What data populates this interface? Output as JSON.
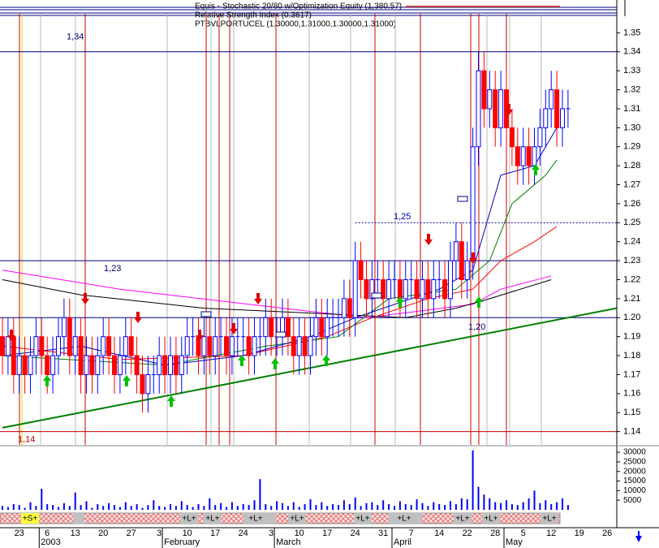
{
  "chart_data": {
    "type": "candlestick",
    "title": "Equis - Stochastic 20/80 w/Optimization Equity (1,380.57)",
    "subtitle": "Relative Strength Index (0.3617)",
    "symbol_label": "PTBVLPORTUCEL (1.30000,1.31000,1.30000,1.31000)",
    "categories": [
      null,
      null,
      null,
      "23",
      null,
      null,
      null,
      null,
      "6",
      null,
      null,
      null,
      null,
      "13",
      null,
      null,
      null,
      null,
      "20",
      null,
      null,
      null,
      null,
      "27",
      null,
      null,
      null,
      null,
      "3",
      null,
      null,
      null,
      null,
      "10",
      null,
      null,
      null,
      null,
      "17",
      null,
      null,
      null,
      null,
      "24",
      null,
      null,
      null,
      null,
      "3",
      null,
      null,
      null,
      null,
      "10",
      null,
      null,
      null,
      null,
      "17",
      null,
      null,
      null,
      null,
      "24",
      null,
      null,
      null,
      null,
      "31",
      null,
      null,
      null,
      null,
      "7",
      null,
      null,
      null,
      null,
      "14",
      null,
      null,
      null,
      null,
      "22",
      null,
      null,
      null,
      null,
      "28",
      null,
      null,
      null,
      null,
      "5",
      null,
      null,
      null,
      null,
      "12",
      null,
      null,
      null,
      null,
      "19",
      null,
      null,
      null,
      null,
      "26",
      null
    ],
    "months": [
      null,
      null,
      null,
      null,
      null,
      null,
      null,
      "2003",
      null,
      null,
      null,
      null,
      null,
      null,
      null,
      null,
      null,
      null,
      null,
      null,
      null,
      null,
      null,
      null,
      null,
      null,
      null,
      null,
      null,
      "February",
      null,
      null,
      null,
      null,
      null,
      null,
      null,
      null,
      null,
      null,
      null,
      null,
      null,
      null,
      null,
      null,
      null,
      null,
      null,
      "March",
      null,
      null,
      null,
      null,
      null,
      null,
      null,
      null,
      null,
      null,
      null,
      null,
      null,
      null,
      null,
      null,
      null,
      null,
      null,
      null,
      "April",
      null,
      null,
      null,
      null,
      null,
      null,
      null,
      null,
      null,
      null,
      null,
      null,
      null,
      null,
      null,
      null,
      null,
      null,
      null,
      "May",
      null,
      null,
      null,
      null,
      null,
      null,
      null,
      null,
      null,
      null,
      null,
      null,
      null,
      null,
      null,
      null,
      null,
      null,
      null
    ],
    "open": [
      1.19,
      1.18,
      1.19,
      1.17,
      1.18,
      1.17,
      1.18,
      1.19,
      1.18,
      1.17,
      1.18,
      1.19,
      1.2,
      1.18,
      1.19,
      1.17,
      1.18,
      1.17,
      1.18,
      1.19,
      1.18,
      1.17,
      1.18,
      1.19,
      1.18,
      1.17,
      1.16,
      1.17,
      1.17,
      1.18,
      1.17,
      1.18,
      1.17,
      1.18,
      1.19,
      1.19,
      1.18,
      1.19,
      1.18,
      1.19,
      1.19,
      1.18,
      1.19,
      1.19,
      1.19,
      1.18,
      1.19,
      1.19,
      1.2,
      1.19,
      1.19,
      1.2,
      1.19,
      1.18,
      1.19,
      1.18,
      1.19,
      1.2,
      1.19,
      1.2,
      1.2,
      1.2,
      1.21,
      1.2,
      1.23,
      1.22,
      1.21,
      1.22,
      1.22,
      1.21,
      1.22,
      1.22,
      1.21,
      1.22,
      1.22,
      1.21,
      1.22,
      1.21,
      1.22,
      1.22,
      1.21,
      1.23,
      1.24,
      1.22,
      1.23,
      1.29,
      1.33,
      1.31,
      1.32,
      1.3,
      1.32,
      1.3,
      1.29,
      1.28,
      1.29,
      1.28,
      1.29,
      1.3,
      1.31,
      1.32,
      1.3,
      1.31,
      null,
      null,
      null,
      null,
      null,
      null,
      null,
      null
    ],
    "high": [
      1.2,
      1.2,
      1.2,
      1.19,
      1.19,
      1.19,
      1.2,
      1.2,
      1.19,
      1.19,
      1.2,
      1.21,
      1.21,
      1.2,
      1.2,
      1.19,
      1.19,
      1.19,
      1.2,
      1.2,
      1.19,
      1.19,
      1.2,
      1.2,
      1.19,
      1.18,
      1.18,
      1.18,
      1.19,
      1.19,
      1.19,
      1.19,
      1.19,
      1.2,
      1.2,
      1.2,
      1.2,
      1.2,
      1.2,
      1.2,
      1.2,
      1.2,
      1.2,
      1.2,
      1.2,
      1.2,
      1.2,
      1.21,
      1.21,
      1.2,
      1.21,
      1.21,
      1.2,
      1.2,
      1.2,
      1.2,
      1.21,
      1.21,
      1.21,
      1.21,
      1.21,
      1.22,
      1.22,
      1.24,
      1.24,
      1.23,
      1.23,
      1.23,
      1.23,
      1.23,
      1.23,
      1.23,
      1.23,
      1.23,
      1.23,
      1.23,
      1.23,
      1.23,
      1.23,
      1.23,
      1.24,
      1.25,
      1.25,
      1.24,
      1.3,
      1.34,
      1.34,
      1.33,
      1.33,
      1.33,
      1.33,
      1.31,
      1.3,
      1.3,
      1.3,
      1.3,
      1.31,
      1.32,
      1.33,
      1.33,
      1.32,
      1.32,
      null,
      null,
      null,
      null,
      null,
      null,
      null,
      null
    ],
    "low": [
      1.17,
      1.17,
      1.16,
      1.16,
      1.16,
      1.16,
      1.17,
      1.17,
      1.16,
      1.16,
      1.17,
      1.18,
      1.17,
      1.17,
      1.16,
      1.16,
      1.16,
      1.16,
      1.17,
      1.17,
      1.16,
      1.16,
      1.17,
      1.17,
      1.16,
      1.15,
      1.15,
      1.16,
      1.16,
      1.16,
      1.16,
      1.16,
      1.16,
      1.17,
      1.18,
      1.17,
      1.17,
      1.17,
      1.17,
      1.18,
      1.17,
      1.17,
      1.18,
      1.18,
      1.17,
      1.17,
      1.18,
      1.18,
      1.18,
      1.18,
      1.18,
      1.18,
      1.17,
      1.17,
      1.17,
      1.17,
      1.18,
      1.18,
      1.18,
      1.19,
      1.19,
      1.19,
      1.19,
      1.19,
      1.21,
      1.2,
      1.2,
      1.21,
      1.2,
      1.2,
      1.21,
      1.2,
      1.2,
      1.21,
      1.2,
      1.2,
      1.2,
      1.2,
      1.21,
      1.2,
      1.2,
      1.22,
      1.21,
      1.21,
      1.22,
      1.28,
      1.3,
      1.3,
      1.29,
      1.29,
      1.29,
      1.28,
      1.27,
      1.27,
      1.27,
      1.27,
      1.28,
      1.29,
      1.3,
      1.29,
      1.29,
      1.3,
      null,
      null,
      null,
      null,
      null,
      null,
      null,
      null
    ],
    "close": [
      1.18,
      1.19,
      1.17,
      1.18,
      1.17,
      1.18,
      1.19,
      1.18,
      1.17,
      1.18,
      1.19,
      1.2,
      1.18,
      1.19,
      1.17,
      1.18,
      1.17,
      1.18,
      1.19,
      1.18,
      1.17,
      1.18,
      1.19,
      1.18,
      1.17,
      1.16,
      1.17,
      1.17,
      1.18,
      1.17,
      1.18,
      1.17,
      1.18,
      1.19,
      1.19,
      1.18,
      1.19,
      1.18,
      1.19,
      1.19,
      1.18,
      1.19,
      1.19,
      1.19,
      1.18,
      1.19,
      1.19,
      1.2,
      1.19,
      1.19,
      1.2,
      1.19,
      1.18,
      1.19,
      1.18,
      1.19,
      1.2,
      1.19,
      1.2,
      1.2,
      1.2,
      1.21,
      1.2,
      1.23,
      1.22,
      1.21,
      1.22,
      1.22,
      1.21,
      1.22,
      1.22,
      1.21,
      1.22,
      1.22,
      1.21,
      1.22,
      1.21,
      1.22,
      1.22,
      1.21,
      1.23,
      1.24,
      1.22,
      1.23,
      1.29,
      1.33,
      1.31,
      1.32,
      1.3,
      1.32,
      1.3,
      1.29,
      1.28,
      1.29,
      1.28,
      1.29,
      1.3,
      1.31,
      1.32,
      1.3,
      1.31,
      1.31,
      null,
      null,
      null,
      null,
      null,
      null,
      null,
      null
    ],
    "up_color": "#0000ff",
    "down_color": "#ff0000",
    "ylim": [
      1.133,
      1.36
    ],
    "yticks": [
      1.14,
      1.15,
      1.16,
      1.17,
      1.18,
      1.19,
      {
        "value": 1.2,
        "label": "1.20"
      },
      1.21,
      1.22,
      1.23,
      1.24,
      1.25,
      1.26,
      1.27,
      1.28,
      1.29,
      {
        "value": 1.3,
        "label": "1.30"
      },
      1.31,
      1.32,
      1.33,
      1.34,
      1.35
    ],
    "volume": [
      2000,
      1500,
      3000,
      2500,
      1000,
      4000,
      2000,
      11000,
      3000,
      2500,
      1500,
      3500,
      2000,
      9000,
      2500,
      4500,
      1000,
      3000,
      2000,
      3500,
      2500,
      1500,
      4000,
      2000,
      3000,
      1000,
      2500,
      5000,
      2000,
      1500,
      3000,
      2000,
      4500,
      2500,
      1500,
      3000,
      2000,
      6000,
      2500,
      3500,
      1500,
      4000,
      2000,
      3000,
      2500,
      5000,
      16000,
      3000,
      2000,
      4500,
      3500,
      2000,
      4000,
      1500,
      3000,
      5500,
      2500,
      4000,
      2000,
      3000,
      2500,
      5000,
      3000,
      6500,
      2000,
      3500,
      4000,
      2500,
      5000,
      3000,
      2000,
      4500,
      3000,
      2500,
      5500,
      3500,
      2000,
      4000,
      3000,
      2500,
      4500,
      3000,
      6000,
      5500,
      31000,
      12000,
      8000,
      6000,
      4000,
      3500,
      5000,
      3000,
      2500,
      4000,
      6000,
      10000,
      3500,
      5000,
      3000,
      4000,
      6000,
      2500,
      null,
      null,
      null,
      null,
      null,
      null,
      null,
      null
    ],
    "volume_color": "#0000ff",
    "volume_ylim": [
      0,
      33000
    ],
    "volume_ticks": [
      5000,
      10000,
      15000,
      20000,
      25000,
      30000
    ],
    "levels": [
      {
        "value": 1.34,
        "label": "1,34",
        "color": "#000080"
      },
      {
        "value": 1.23,
        "label": "1,23",
        "color": "#000080"
      },
      {
        "value": 1.2,
        "label": "1,20",
        "color": "#000080"
      },
      {
        "value": 1.14,
        "label": "1,14",
        "color": "#c00000"
      },
      {
        "value": 1.25,
        "label": "1,25",
        "color": "#0000c0",
        "dashed": true
      }
    ],
    "trendline": {
      "color": "#008000",
      "x": [
        0,
        109.7
      ],
      "values": [
        1.142,
        1.205
      ]
    },
    "overlays": [
      {
        "color": "#ff00ff",
        "x": [
          0,
          21,
          50,
          65,
          84,
          89,
          98
        ],
        "values": [
          1.225,
          1.215,
          1.205,
          1.2,
          1.207,
          1.215,
          1.222
        ]
      },
      {
        "color": "#000000",
        "x": [
          0,
          14,
          36,
          58,
          72,
          81,
          87,
          98
        ],
        "values": [
          1.22,
          1.212,
          1.205,
          1.202,
          1.2,
          1.205,
          1.21,
          1.22
        ]
      },
      {
        "color": "#ff0000",
        "x": [
          0,
          21,
          43,
          58,
          66,
          76,
          84,
          89,
          95,
          99
        ],
        "values": [
          1.185,
          1.178,
          1.18,
          1.19,
          1.2,
          1.21,
          1.215,
          1.23,
          1.24,
          1.248
        ]
      },
      {
        "color": "#008000",
        "x": [
          0,
          29,
          47,
          60,
          69,
          81,
          87,
          91,
          97,
          99
        ],
        "values": [
          1.18,
          1.175,
          1.185,
          1.19,
          1.21,
          1.215,
          1.23,
          1.26,
          1.275,
          1.283
        ]
      },
      {
        "color": "#0000c0",
        "x": [
          0,
          14,
          29,
          43,
          55,
          63,
          78,
          84,
          89,
          95,
          99
        ],
        "values": [
          1.18,
          1.185,
          1.175,
          1.18,
          1.19,
          1.2,
          1.215,
          1.225,
          1.275,
          1.28,
          1.3
        ]
      }
    ],
    "strip_labels": [
      "+S+",
      "+L+",
      "+L+",
      "+L+",
      "+L+",
      "+L+",
      "+L+",
      "+L+",
      "+L+",
      "+L+"
    ]
  }
}
